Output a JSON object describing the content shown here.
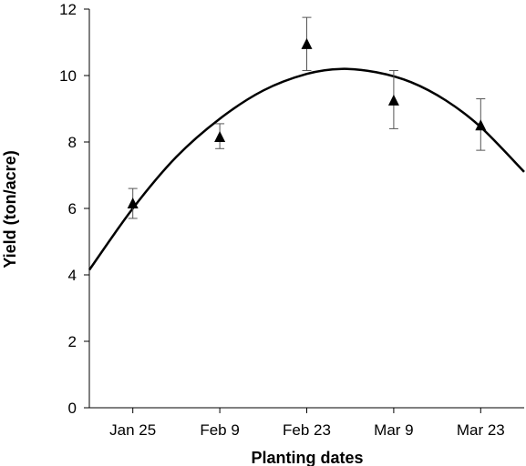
{
  "chart_data": {
    "type": "scatter",
    "title": "",
    "xlabel": "Planting dates",
    "ylabel": "Yield (ton/acre)",
    "categories": [
      "Jan 25",
      "Feb 9",
      "Feb 23",
      "Mar 9",
      "Mar 23"
    ],
    "xlim_categories": [
      -0.5,
      4.5
    ],
    "ylim": [
      0,
      12
    ],
    "yticks": [
      0,
      2,
      4,
      6,
      8,
      10,
      12
    ],
    "grid": false,
    "legend": "none",
    "series": [
      {
        "marker": "triangle",
        "color": "#000000",
        "values": [
          6.15,
          8.15,
          10.95,
          9.25,
          8.5
        ],
        "err_low": [
          5.7,
          7.8,
          10.15,
          8.4,
          7.75
        ],
        "err_high": [
          6.6,
          8.55,
          11.75,
          10.15,
          9.3
        ]
      }
    ],
    "fit_curve": {
      "type": "quadratic",
      "color": "#000000",
      "points": [
        {
          "x": -0.5,
          "y": 4.15
        },
        {
          "x": 0.0,
          "y": 6.0
        },
        {
          "x": 0.5,
          "y": 7.55
        },
        {
          "x": 1.0,
          "y": 8.7
        },
        {
          "x": 1.5,
          "y": 9.55
        },
        {
          "x": 2.0,
          "y": 10.05
        },
        {
          "x": 2.4,
          "y": 10.2
        },
        {
          "x": 2.8,
          "y": 10.1
        },
        {
          "x": 3.2,
          "y": 9.8
        },
        {
          "x": 3.6,
          "y": 9.25
        },
        {
          "x": 4.0,
          "y": 8.45
        },
        {
          "x": 4.5,
          "y": 7.1
        }
      ]
    }
  }
}
